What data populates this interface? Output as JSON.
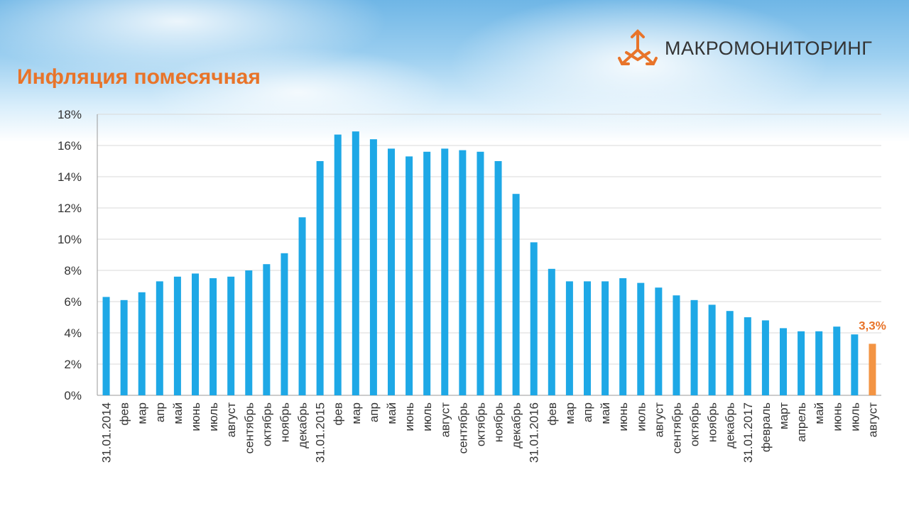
{
  "header": {
    "title": "Инфляция помесячная",
    "brand": "МАКРОМОНИТОРИНГ",
    "brand_logo_icon": "macromonitoring-logo-icon"
  },
  "colors": {
    "bar": "#1ea8e6",
    "highlight": "#f39443",
    "title": "#e8742a",
    "grid": "#d9d9d9"
  },
  "chart_data": {
    "type": "bar",
    "title": "Инфляция помесячная",
    "xlabel": "",
    "ylabel": "",
    "ylim": [
      0,
      18
    ],
    "y_ticks": [
      "0%",
      "2%",
      "4%",
      "6%",
      "8%",
      "10%",
      "12%",
      "14%",
      "16%",
      "18%"
    ],
    "grid": true,
    "categories": [
      "31.01.2014",
      "фев",
      "мар",
      "апр",
      "май",
      "июнь",
      "июль",
      "август",
      "сентябрь",
      "октябрь",
      "ноябрь",
      "декабрь",
      "31.01.2015",
      "фев",
      "мар",
      "апр",
      "май",
      "июнь",
      "июль",
      "август",
      "сентябрь",
      "октябрь",
      "ноябрь",
      "декабрь",
      "31.01.2016",
      "фев",
      "мар",
      "апр",
      "май",
      "июнь",
      "июль",
      "август",
      "сентябрь",
      "октябрь",
      "ноябрь",
      "декабрь",
      "31.01.2017",
      "февраль",
      "март",
      "апрель",
      "май",
      "июнь",
      "июль",
      "август"
    ],
    "values": [
      6.3,
      6.1,
      6.6,
      7.3,
      7.6,
      7.8,
      7.5,
      7.6,
      8.0,
      8.4,
      9.1,
      11.4,
      15.0,
      16.7,
      16.9,
      16.4,
      15.8,
      15.3,
      15.6,
      15.8,
      15.7,
      15.6,
      15.0,
      12.9,
      9.8,
      8.1,
      7.3,
      7.3,
      7.3,
      7.5,
      7.2,
      6.9,
      6.4,
      6.1,
      5.8,
      5.4,
      5.0,
      4.8,
      4.3,
      4.1,
      4.1,
      4.4,
      3.9,
      3.3
    ],
    "highlight_index": 43,
    "data_labels": [
      {
        "index": 43,
        "text": "3,3%"
      }
    ]
  }
}
